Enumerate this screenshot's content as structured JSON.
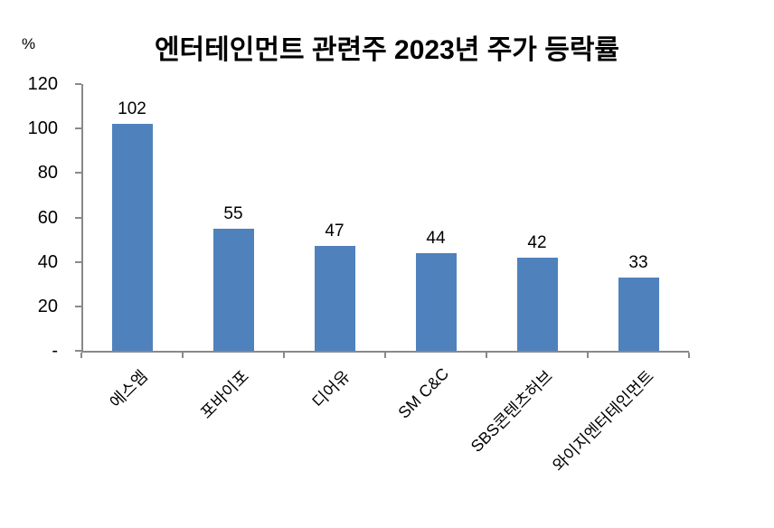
{
  "chart_data": {
    "type": "bar",
    "title": "엔터테인먼트 관련주 2023년 주가 등락률",
    "unit_label": "%",
    "categories": [
      "에스엠",
      "포바이포",
      "디어유",
      "SM C&C",
      "SBS콘텐츠허브",
      "와이지엔터테인먼트"
    ],
    "values": [
      102,
      55,
      47,
      44,
      42,
      33
    ],
    "xlabel": "",
    "ylabel": "%",
    "ylim": [
      0,
      120
    ],
    "y_ticks": [
      120,
      100,
      80,
      60,
      40,
      20,
      0
    ],
    "y_tick_labels": [
      "120",
      "100",
      "80",
      "60",
      "40",
      "20",
      "-"
    ],
    "x_tick_label_rotation_deg": 45,
    "grid": false,
    "legend_position": "none",
    "data_labels": true,
    "bar_color": "#4F81BD",
    "axis_color": "#898989",
    "text_color": "#000000",
    "background_color": "#FFFFFF"
  }
}
